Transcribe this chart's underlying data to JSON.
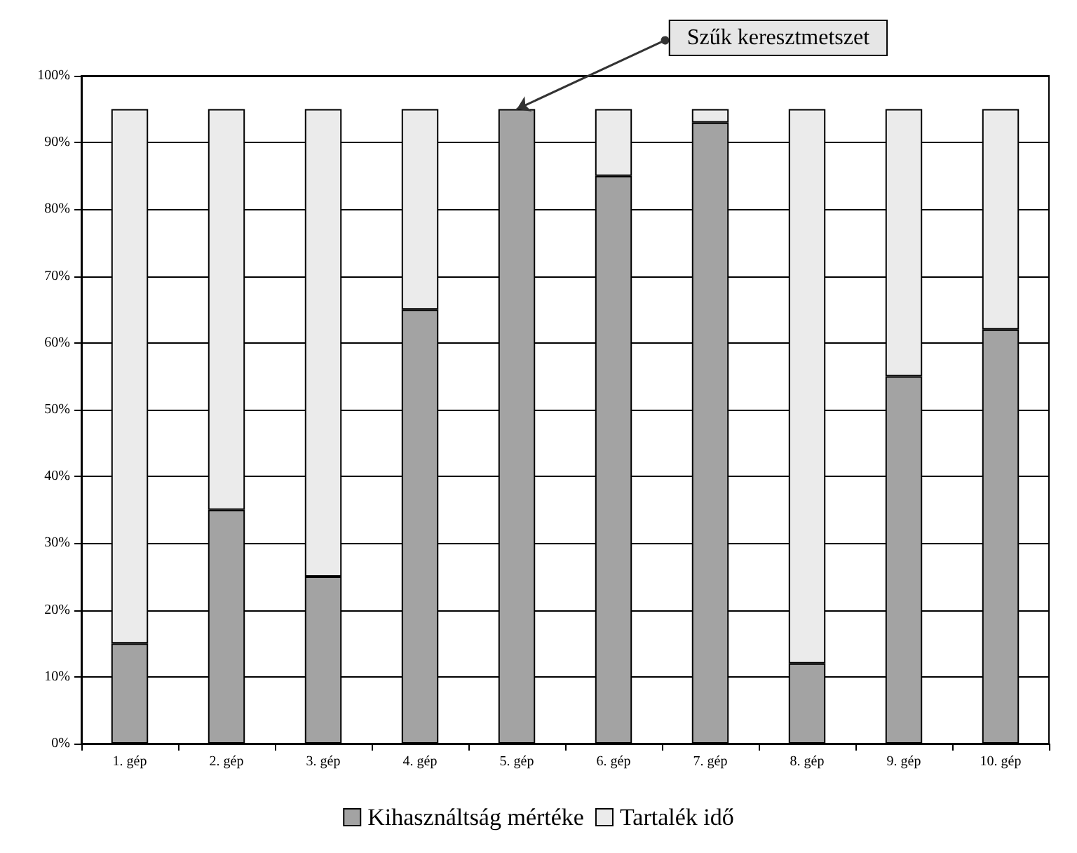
{
  "chart_data": {
    "type": "bar",
    "stacked": true,
    "categories": [
      "1. gép",
      "2. gép",
      "3. gép",
      "4. gép",
      "5. gép",
      "6. gép",
      "7. gép",
      "8. gép",
      "9. gép",
      "10. gép"
    ],
    "series": [
      {
        "name": "Kihasználtság mértéke",
        "color": "#a3a3a3",
        "values": [
          15,
          35,
          25,
          65,
          95,
          85,
          93,
          12,
          55,
          62
        ]
      },
      {
        "name": "Tartalék idő",
        "color": "#ebebeb",
        "values": [
          80,
          60,
          70,
          30,
          0,
          10,
          2,
          83,
          40,
          33
        ]
      }
    ],
    "ylim": [
      0,
      100
    ],
    "yticks": [
      {
        "value": 0,
        "label": "0%"
      },
      {
        "value": 10,
        "label": "10%"
      },
      {
        "value": 20,
        "label": "20%"
      },
      {
        "value": 30,
        "label": "30%"
      },
      {
        "value": 40,
        "label": "40%"
      },
      {
        "value": 50,
        "label": "50%"
      },
      {
        "value": 60,
        "label": "60%"
      },
      {
        "value": 70,
        "label": "70%"
      },
      {
        "value": 80,
        "label": "80%"
      },
      {
        "value": 90,
        "label": "90%"
      },
      {
        "value": 100,
        "label": "100%"
      }
    ],
    "grid": true,
    "legend": "bottom",
    "annotations": [
      {
        "text": "Szűk keresztmetszet",
        "x": "5. gép",
        "y": 95
      }
    ]
  }
}
